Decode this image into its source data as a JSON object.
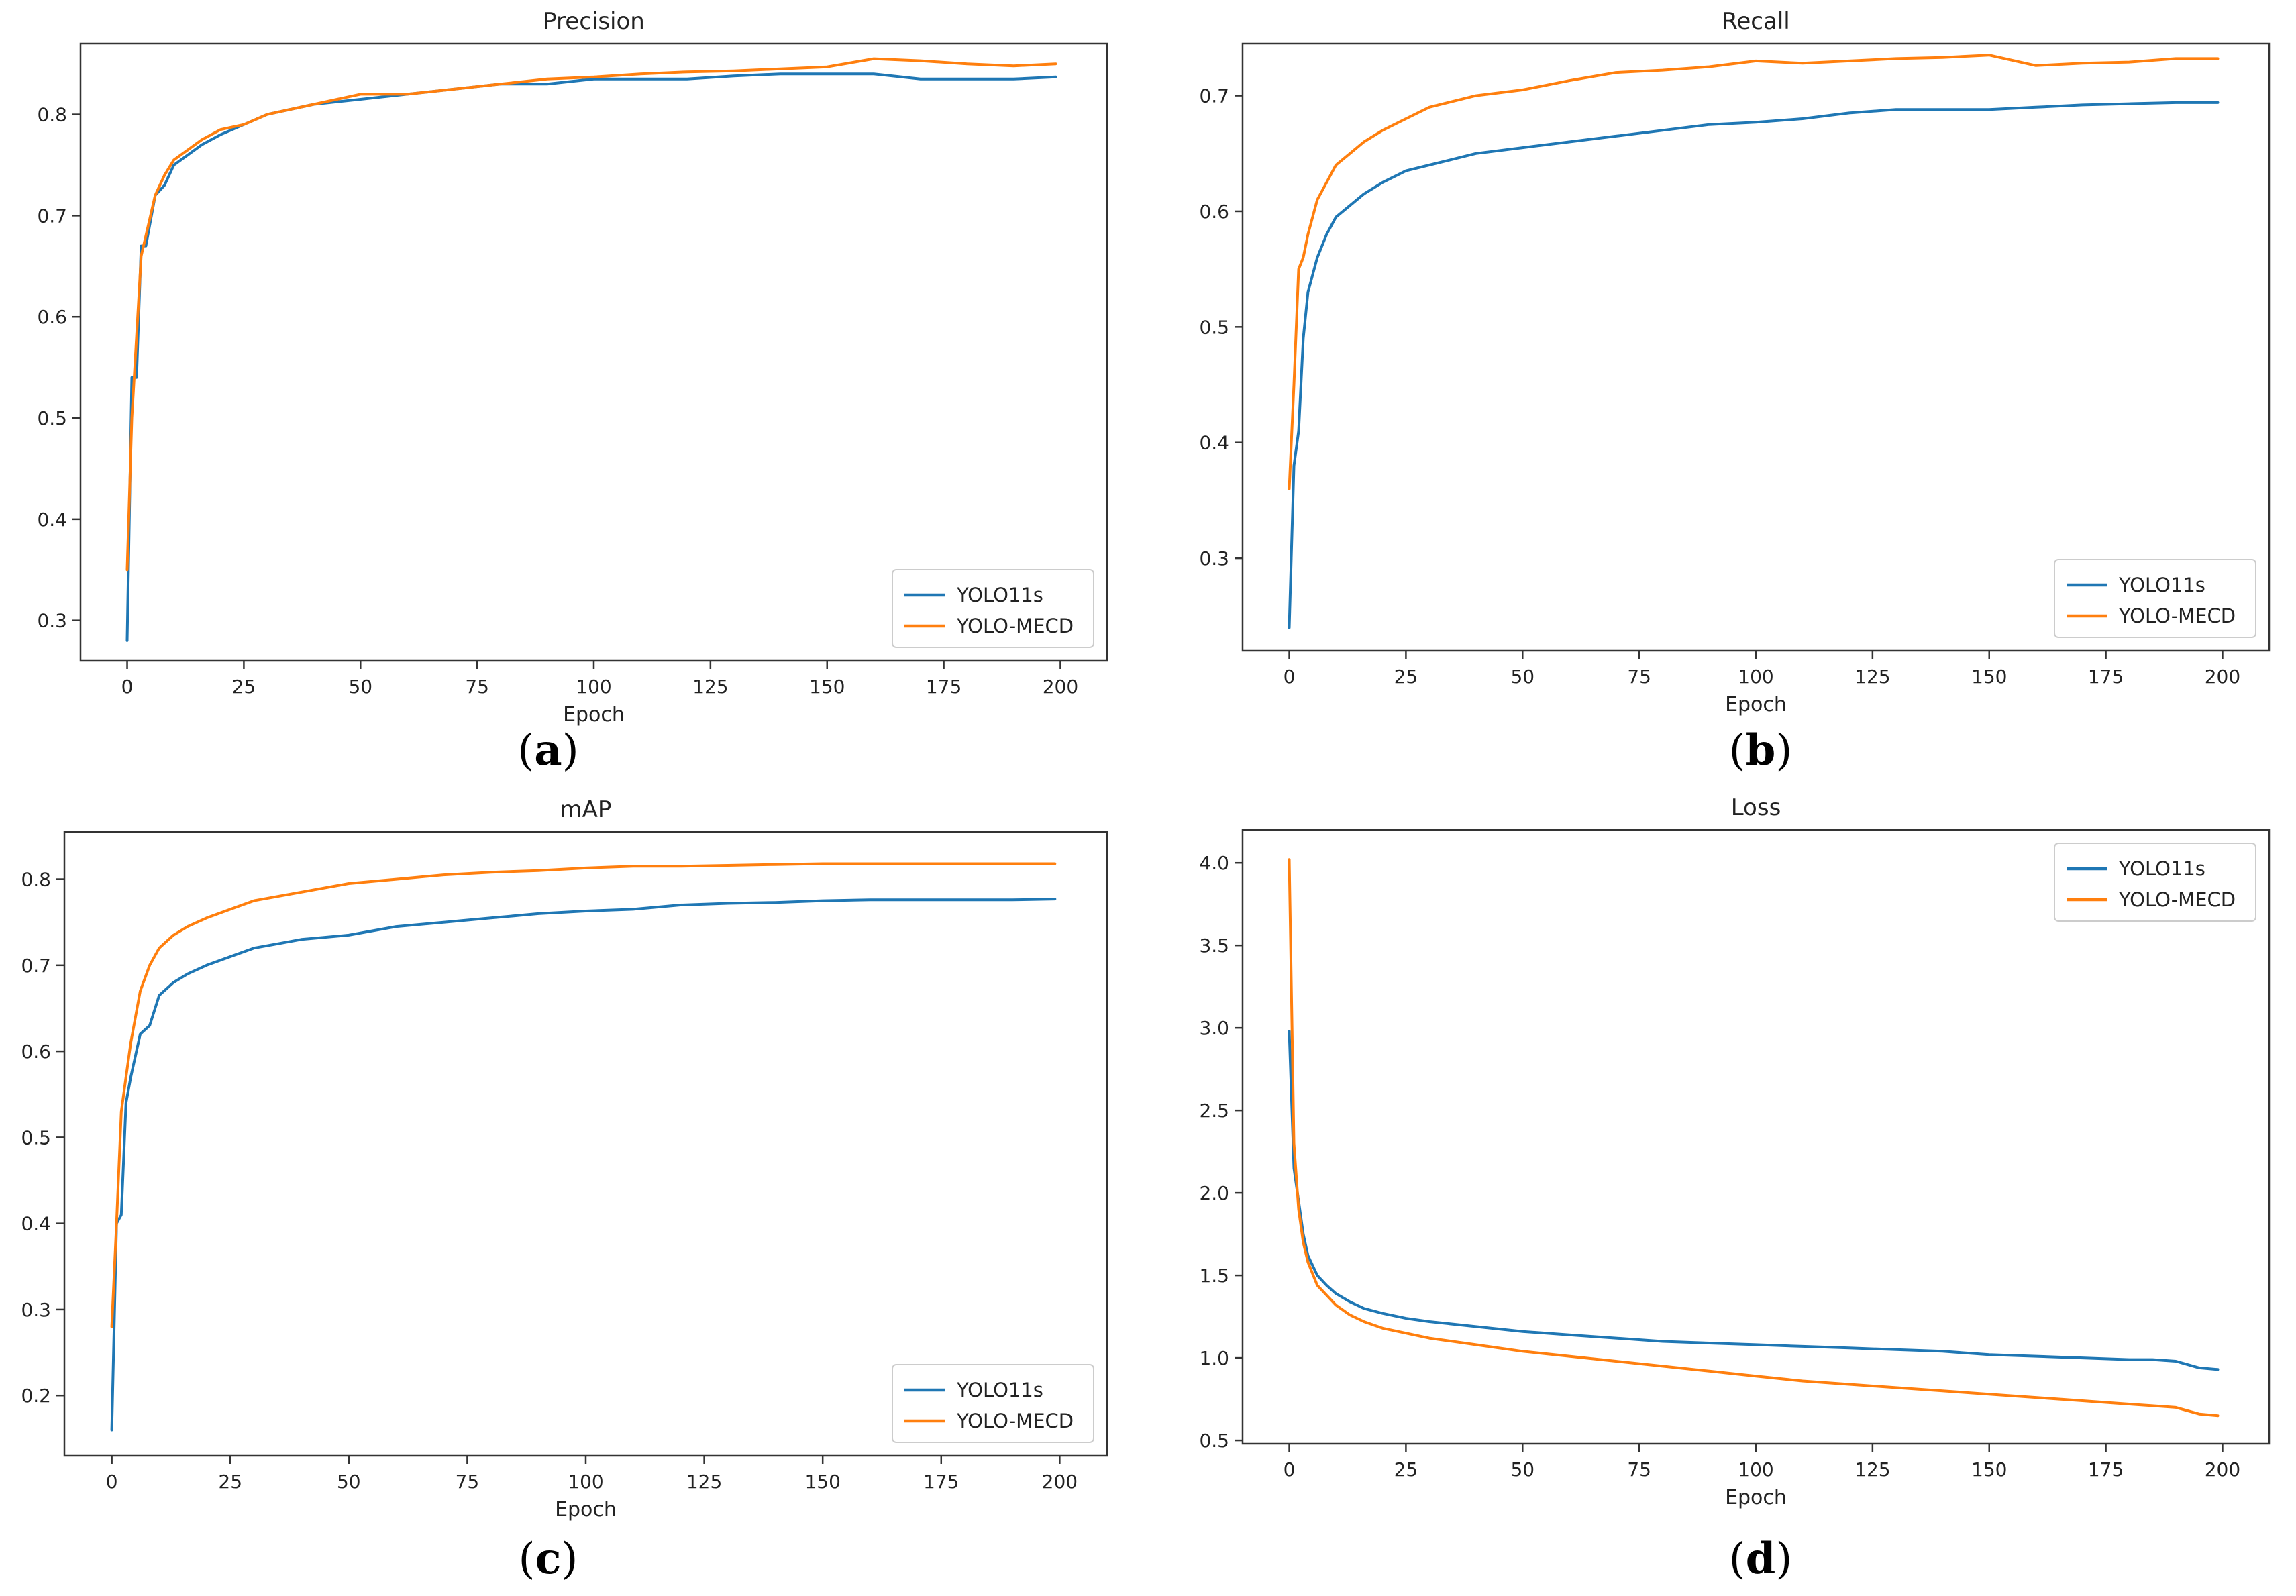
{
  "figure": {
    "panel_labels": [
      "(a)",
      "(b)",
      "(c)",
      "(d)"
    ],
    "colors": {
      "yolo11s": "#1f77b4",
      "yolo_mecd": "#ff7f0e",
      "axes": "#333333"
    }
  },
  "chart_data": [
    {
      "type": "line",
      "title": "Precision",
      "xlabel": "Epoch",
      "ylabel": "",
      "xlim": [
        -10,
        210
      ],
      "ylim": [
        0.26,
        0.87
      ],
      "xticks": [
        0,
        25,
        50,
        75,
        100,
        125,
        150,
        175,
        200
      ],
      "yticks": [
        0.3,
        0.4,
        0.5,
        0.6,
        0.7,
        0.8
      ],
      "legend": "bottom-right",
      "series": [
        {
          "name": "YOLO11s",
          "color": "#1f77b4",
          "x": [
            0,
            1,
            2,
            3,
            4,
            6,
            8,
            10,
            13,
            16,
            20,
            25,
            30,
            35,
            40,
            50,
            60,
            70,
            80,
            90,
            100,
            110,
            120,
            130,
            140,
            150,
            160,
            170,
            180,
            190,
            199
          ],
          "values": [
            0.28,
            0.54,
            0.54,
            0.67,
            0.67,
            0.72,
            0.73,
            0.75,
            0.76,
            0.77,
            0.78,
            0.79,
            0.8,
            0.805,
            0.81,
            0.815,
            0.82,
            0.825,
            0.83,
            0.83,
            0.835,
            0.835,
            0.835,
            0.838,
            0.84,
            0.84,
            0.84,
            0.835,
            0.835,
            0.835,
            0.837
          ]
        },
        {
          "name": "YOLO-MECD",
          "color": "#ff7f0e",
          "x": [
            0,
            1,
            2,
            3,
            4,
            6,
            8,
            10,
            13,
            16,
            20,
            25,
            30,
            35,
            40,
            50,
            60,
            70,
            80,
            90,
            100,
            110,
            120,
            130,
            140,
            150,
            160,
            170,
            180,
            190,
            199
          ],
          "values": [
            0.35,
            0.5,
            0.58,
            0.66,
            0.68,
            0.72,
            0.74,
            0.755,
            0.765,
            0.775,
            0.785,
            0.79,
            0.8,
            0.805,
            0.81,
            0.82,
            0.82,
            0.825,
            0.83,
            0.835,
            0.837,
            0.84,
            0.842,
            0.843,
            0.845,
            0.847,
            0.855,
            0.853,
            0.85,
            0.848,
            0.85
          ]
        }
      ]
    },
    {
      "type": "line",
      "title": "Recall",
      "xlabel": "Epoch",
      "ylabel": "",
      "xlim": [
        -10,
        210
      ],
      "ylim": [
        0.22,
        0.745
      ],
      "xticks": [
        0,
        25,
        50,
        75,
        100,
        125,
        150,
        175,
        200
      ],
      "yticks": [
        0.3,
        0.4,
        0.5,
        0.6,
        0.7
      ],
      "legend": "bottom-right",
      "series": [
        {
          "name": "YOLO11s",
          "color": "#1f77b4",
          "x": [
            0,
            1,
            2,
            3,
            4,
            6,
            8,
            10,
            13,
            16,
            20,
            25,
            30,
            35,
            40,
            50,
            60,
            70,
            80,
            90,
            100,
            110,
            120,
            130,
            140,
            150,
            160,
            170,
            180,
            190,
            199
          ],
          "values": [
            0.24,
            0.38,
            0.41,
            0.49,
            0.53,
            0.56,
            0.58,
            0.595,
            0.605,
            0.615,
            0.625,
            0.635,
            0.64,
            0.645,
            0.65,
            0.655,
            0.66,
            0.665,
            0.67,
            0.675,
            0.677,
            0.68,
            0.685,
            0.688,
            0.688,
            0.688,
            0.69,
            0.692,
            0.693,
            0.694,
            0.694
          ]
        },
        {
          "name": "YOLO-MECD",
          "color": "#ff7f0e",
          "x": [
            0,
            1,
            2,
            3,
            4,
            6,
            8,
            10,
            13,
            16,
            20,
            25,
            30,
            35,
            40,
            50,
            60,
            70,
            80,
            90,
            100,
            110,
            120,
            130,
            140,
            150,
            160,
            170,
            180,
            190,
            199
          ],
          "values": [
            0.36,
            0.45,
            0.55,
            0.56,
            0.58,
            0.61,
            0.625,
            0.64,
            0.65,
            0.66,
            0.67,
            0.68,
            0.69,
            0.695,
            0.7,
            0.705,
            0.713,
            0.72,
            0.722,
            0.725,
            0.73,
            0.728,
            0.73,
            0.732,
            0.733,
            0.735,
            0.726,
            0.728,
            0.729,
            0.732,
            0.732
          ]
        }
      ]
    },
    {
      "type": "line",
      "title": "mAP",
      "xlabel": "Epoch",
      "ylabel": "",
      "xlim": [
        -10,
        210
      ],
      "ylim": [
        0.13,
        0.855
      ],
      "xticks": [
        0,
        25,
        50,
        75,
        100,
        125,
        150,
        175,
        200
      ],
      "yticks": [
        0.2,
        0.3,
        0.4,
        0.5,
        0.6,
        0.7,
        0.8
      ],
      "legend": "bottom-right",
      "series": [
        {
          "name": "YOLO11s",
          "color": "#1f77b4",
          "x": [
            0,
            1,
            2,
            3,
            4,
            6,
            8,
            10,
            13,
            16,
            20,
            25,
            30,
            35,
            40,
            50,
            60,
            70,
            80,
            90,
            100,
            110,
            120,
            130,
            140,
            150,
            160,
            170,
            180,
            190,
            199
          ],
          "values": [
            0.16,
            0.4,
            0.41,
            0.54,
            0.57,
            0.62,
            0.63,
            0.665,
            0.68,
            0.69,
            0.7,
            0.71,
            0.72,
            0.725,
            0.73,
            0.735,
            0.745,
            0.75,
            0.755,
            0.76,
            0.763,
            0.765,
            0.77,
            0.772,
            0.773,
            0.775,
            0.776,
            0.776,
            0.776,
            0.776,
            0.777
          ]
        },
        {
          "name": "YOLO-MECD",
          "color": "#ff7f0e",
          "x": [
            0,
            1,
            2,
            3,
            4,
            6,
            8,
            10,
            13,
            16,
            20,
            25,
            30,
            35,
            40,
            50,
            60,
            70,
            80,
            90,
            100,
            110,
            120,
            130,
            140,
            150,
            160,
            170,
            180,
            190,
            199
          ],
          "values": [
            0.28,
            0.4,
            0.53,
            0.57,
            0.61,
            0.67,
            0.7,
            0.72,
            0.735,
            0.745,
            0.755,
            0.765,
            0.775,
            0.78,
            0.785,
            0.795,
            0.8,
            0.805,
            0.808,
            0.81,
            0.813,
            0.815,
            0.815,
            0.816,
            0.817,
            0.818,
            0.818,
            0.818,
            0.818,
            0.818,
            0.818
          ]
        }
      ]
    },
    {
      "type": "line",
      "title": "Loss",
      "xlabel": "Epoch",
      "ylabel": "",
      "xlim": [
        -10,
        210
      ],
      "ylim": [
        0.48,
        4.2
      ],
      "xticks": [
        0,
        25,
        50,
        75,
        100,
        125,
        150,
        175,
        200
      ],
      "yticks": [
        0.5,
        1.0,
        1.5,
        2.0,
        2.5,
        3.0,
        3.5,
        4.0
      ],
      "legend": "top-right",
      "series": [
        {
          "name": "YOLO11s",
          "color": "#1f77b4",
          "x": [
            0,
            1,
            2,
            3,
            4,
            6,
            8,
            10,
            13,
            16,
            20,
            25,
            30,
            40,
            50,
            60,
            70,
            80,
            90,
            100,
            110,
            120,
            130,
            140,
            150,
            160,
            170,
            180,
            185,
            190,
            195,
            199
          ],
          "values": [
            2.98,
            2.15,
            1.95,
            1.75,
            1.62,
            1.5,
            1.44,
            1.39,
            1.34,
            1.3,
            1.27,
            1.24,
            1.22,
            1.19,
            1.16,
            1.14,
            1.12,
            1.1,
            1.09,
            1.08,
            1.07,
            1.06,
            1.05,
            1.04,
            1.02,
            1.01,
            1.0,
            0.99,
            0.99,
            0.98,
            0.94,
            0.93
          ]
        },
        {
          "name": "YOLO-MECD",
          "color": "#ff7f0e",
          "x": [
            0,
            1,
            2,
            3,
            4,
            6,
            8,
            10,
            13,
            16,
            20,
            25,
            30,
            40,
            50,
            60,
            70,
            80,
            90,
            100,
            110,
            120,
            130,
            140,
            150,
            160,
            170,
            180,
            185,
            190,
            195,
            199
          ],
          "values": [
            4.02,
            2.3,
            1.9,
            1.7,
            1.58,
            1.44,
            1.38,
            1.32,
            1.26,
            1.22,
            1.18,
            1.15,
            1.12,
            1.08,
            1.04,
            1.01,
            0.98,
            0.95,
            0.92,
            0.89,
            0.86,
            0.84,
            0.82,
            0.8,
            0.78,
            0.76,
            0.74,
            0.72,
            0.71,
            0.7,
            0.66,
            0.65
          ]
        }
      ]
    }
  ]
}
